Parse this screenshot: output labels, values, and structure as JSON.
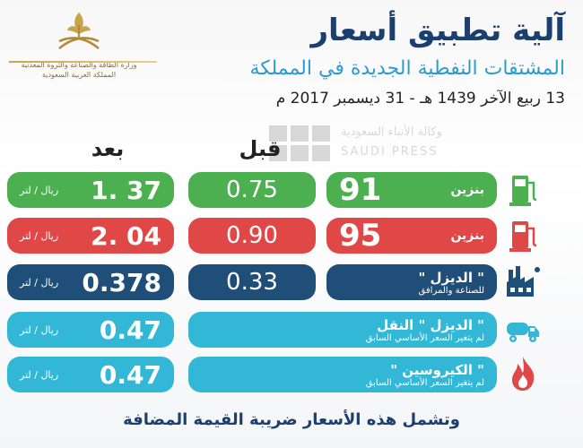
{
  "header": {
    "title": "آلية تطبيق أسعار",
    "subtitle": "المشتقات النفطية الجديدة في المملكة",
    "date_line": "13 ربيع الآخر 1439 هـ - 31 ديسمبر 2017 م",
    "ministry_line1": "وزارة الطاقة والصناعة والثروة المعدنية",
    "ministry_line2": "المملكة العربية السعودية"
  },
  "watermark": {
    "arabic": "وكالة الأنباء السعودية",
    "latin": "SAUDI PRESS"
  },
  "columns": {
    "after": "بعد",
    "before": "قبل"
  },
  "unit": "ريال / لتر",
  "rows": [
    {
      "id": "gasoline-91",
      "name": "بنزين",
      "number": "91",
      "before": "0.75",
      "after": "1. 37",
      "color": "#4caf50"
    },
    {
      "id": "gasoline-95",
      "name": "بنزين",
      "number": "95",
      "before": "0.90",
      "after": "2. 04",
      "color": "#e04848"
    },
    {
      "id": "diesel-industry",
      "name": "\" الديزل \"",
      "sub": "للصناعة والمرافق",
      "before": "0.33",
      "after": "0.378",
      "color": "#1f4e79"
    },
    {
      "id": "diesel-transport",
      "name": "\" الديزل \" النقل",
      "sub": "لم يتغير السعر الأساسي السابق",
      "after": "0.47",
      "color": "#33b7d7"
    },
    {
      "id": "kerosene",
      "name": "\" الكيروسين \"",
      "sub": "لم يتغير السعر الأساسي السابق",
      "after": "0.47",
      "color": "#33b7d7"
    }
  ],
  "footer": "وتشمل هذه الأسعار ضريبة القيمة المضافة",
  "icons": [
    "gas-pump-icon",
    "gas-pump-icon",
    "factory-icon",
    "tanker-truck-icon",
    "flame-icon"
  ]
}
